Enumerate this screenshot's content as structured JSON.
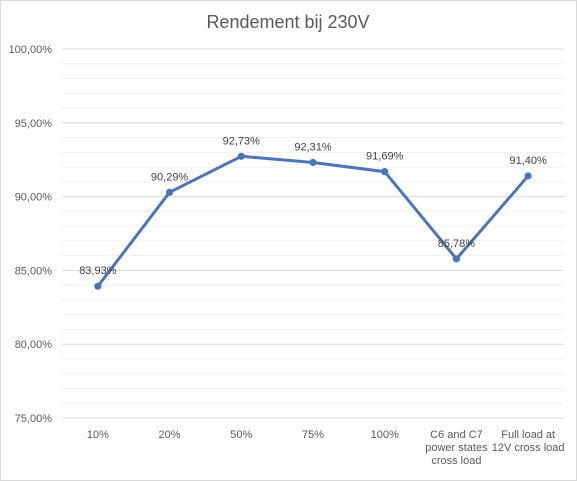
{
  "chart_data": {
    "type": "line",
    "title": "Rendement bij 230V",
    "xlabel": "",
    "ylabel": "",
    "categories": [
      [
        "10%"
      ],
      [
        "20%"
      ],
      [
        "50%"
      ],
      [
        "75%"
      ],
      [
        "100%"
      ],
      [
        "C6 and C7",
        "power states",
        "cross load"
      ],
      [
        "Full load at",
        "12V cross load"
      ]
    ],
    "series": [
      {
        "values": [
          83.93,
          90.29,
          92.73,
          92.31,
          91.69,
          85.78,
          91.4
        ],
        "data_labels": [
          "83,93%",
          "90,29%",
          "92,73%",
          "92,31%",
          "91,69%",
          "85,78%",
          "91,40%"
        ],
        "color": "#4a76b8"
      }
    ],
    "ylim": [
      75,
      100
    ],
    "yticks": [
      75,
      80,
      85,
      90,
      95,
      100
    ],
    "ytick_labels": [
      "75,00%",
      "80,00%",
      "85,00%",
      "90,00%",
      "95,00%",
      "100,00%"
    ],
    "grid": true,
    "legend": "none",
    "colors": {
      "gridline": "#d9d9d9",
      "minor_gridline": "#f0f0f0",
      "line": "#4a76b8"
    }
  }
}
